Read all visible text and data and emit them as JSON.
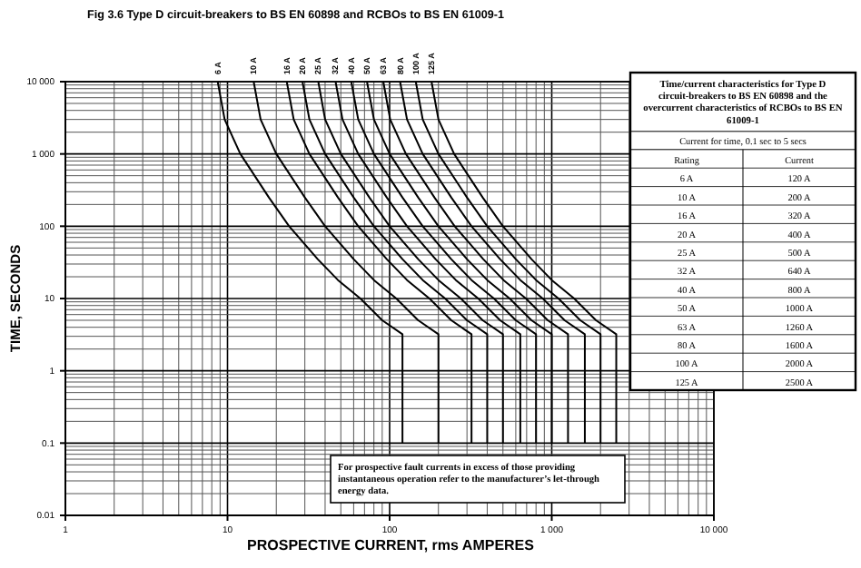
{
  "chart_data": [
    {
      "type": "line",
      "title": "Fig 3.6  Type D circuit-breakers to BS EN 60898 and RCBOs to BS EN 61009-1",
      "xlabel": "PROSPECTIVE CURRENT, rms AMPERES",
      "ylabel": "TIME, SECONDS",
      "log": "xy",
      "grid": true,
      "marker": "none",
      "line_style": "solid",
      "xlim": [
        1,
        10000
      ],
      "ylim": [
        0.01,
        10000
      ],
      "xticks": [
        1,
        10,
        100,
        {
          "value": 1000,
          "label": "1 000"
        },
        {
          "value": 10000,
          "label": "10 000"
        }
      ],
      "yticks": [
        0.01,
        0.1,
        1,
        10,
        100,
        {
          "value": 1000,
          "label": "1 000"
        },
        {
          "value": 10000,
          "label": "10 000"
        }
      ],
      "annotations": [
        "For prospective fault currents in excess of those providing instantaneous operation refer to the manufacturer’s let-through energy data."
      ],
      "series": [
        {
          "name": "6 A",
          "color": "#000000",
          "x": [
            8.7,
            9.6,
            12,
            18,
            24,
            36,
            48,
            66,
            90,
            120,
            120
          ],
          "values": [
            10000,
            3000,
            1000,
            250,
            100,
            35,
            18,
            10,
            5,
            3.2,
            0.1
          ]
        },
        {
          "name": "10 A",
          "color": "#000000",
          "x": [
            14.5,
            16,
            20,
            30,
            40,
            60,
            80,
            110,
            150,
            200,
            200
          ],
          "values": [
            10000,
            3000,
            1000,
            250,
            100,
            35,
            18,
            10,
            5,
            3.2,
            0.1
          ]
        },
        {
          "name": "16 A",
          "color": "#000000",
          "x": [
            23.2,
            25.6,
            32,
            48,
            64,
            96,
            128,
            176,
            240,
            320,
            320
          ],
          "values": [
            10000,
            3000,
            1000,
            250,
            100,
            35,
            18,
            10,
            5,
            3.2,
            0.1
          ]
        },
        {
          "name": "20 A",
          "color": "#000000",
          "x": [
            29,
            32,
            40,
            60,
            80,
            120,
            160,
            220,
            300,
            400,
            400
          ],
          "values": [
            10000,
            3000,
            1000,
            250,
            100,
            35,
            18,
            10,
            5,
            3.2,
            0.1
          ]
        },
        {
          "name": "25 A",
          "color": "#000000",
          "x": [
            36.3,
            40,
            50,
            75,
            100,
            150,
            200,
            275,
            375,
            500,
            500
          ],
          "values": [
            10000,
            3000,
            1000,
            250,
            100,
            35,
            18,
            10,
            5,
            3.2,
            0.1
          ]
        },
        {
          "name": "32 A",
          "color": "#000000",
          "x": [
            46.4,
            51.2,
            64,
            96,
            128,
            192,
            256,
            352,
            480,
            640,
            640
          ],
          "values": [
            10000,
            3000,
            1000,
            250,
            100,
            35,
            18,
            10,
            5,
            3.2,
            0.1
          ]
        },
        {
          "name": "40 A",
          "color": "#000000",
          "x": [
            58,
            64,
            80,
            120,
            160,
            240,
            320,
            440,
            600,
            800,
            800
          ],
          "values": [
            10000,
            3000,
            1000,
            250,
            100,
            35,
            18,
            10,
            5,
            3.2,
            0.1
          ]
        },
        {
          "name": "50 A",
          "color": "#000000",
          "x": [
            72.5,
            80,
            100,
            150,
            200,
            300,
            400,
            550,
            750,
            1000,
            1000
          ],
          "values": [
            10000,
            3000,
            1000,
            250,
            100,
            35,
            18,
            10,
            5,
            3.2,
            0.1
          ]
        },
        {
          "name": "63 A",
          "color": "#000000",
          "x": [
            91.4,
            100.8,
            126,
            189,
            252,
            378,
            504,
            693,
            945,
            1260,
            1260
          ],
          "values": [
            10000,
            3000,
            1000,
            250,
            100,
            35,
            18,
            10,
            5,
            3.2,
            0.1
          ]
        },
        {
          "name": "80 A",
          "color": "#000000",
          "x": [
            116,
            128,
            160,
            240,
            320,
            480,
            640,
            880,
            1200,
            1600,
            1600
          ],
          "values": [
            10000,
            3000,
            1000,
            250,
            100,
            35,
            18,
            10,
            5,
            3.2,
            0.1
          ]
        },
        {
          "name": "100 A",
          "color": "#000000",
          "x": [
            145,
            160,
            200,
            300,
            400,
            600,
            800,
            1100,
            1500,
            2000,
            2000
          ],
          "values": [
            10000,
            3000,
            1000,
            250,
            100,
            35,
            18,
            10,
            5,
            3.2,
            0.1
          ]
        },
        {
          "name": "125 A",
          "color": "#000000",
          "x": [
            181.3,
            200,
            250,
            375,
            500,
            750,
            1000,
            1375,
            1875,
            2500,
            2500
          ],
          "values": [
            10000,
            3000,
            1000,
            250,
            100,
            35,
            18,
            10,
            5,
            3.2,
            0.1
          ]
        }
      ]
    },
    {
      "type": "other",
      "title": "Time/current characteristics for Type D circuit-breakers to BS EN 60898 and the overcurrent characteristics of RCBOs to BS EN 61009-1",
      "subtitle": "Current for time, 0.1 sec to 5 secs",
      "xlabel": "Rating",
      "ylabel": "Current",
      "categories": [
        "6 A",
        "10 A",
        "16 A",
        "20 A",
        "25 A",
        "32 A",
        "40 A",
        "50 A",
        "63 A",
        "80 A",
        "100 A",
        "125 A"
      ],
      "value_labels": [
        "120 A",
        "200 A",
        "320 A",
        "400 A",
        "500 A",
        "640 A",
        "800 A",
        "1000 A",
        "1260 A",
        "1600 A",
        "2000 A",
        "2500 A"
      ]
    }
  ]
}
